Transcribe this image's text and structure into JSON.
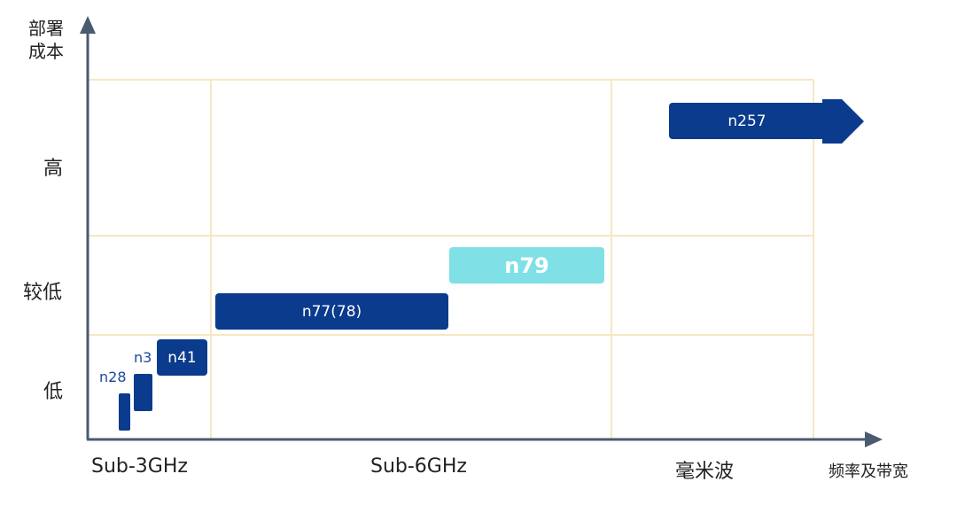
{
  "y_axis": {
    "title_line1": "部署",
    "title_line2": "成本",
    "levels": [
      "高",
      "较低",
      "低"
    ]
  },
  "x_axis": {
    "categories": [
      "Sub-3GHz",
      "Sub-6GHz",
      "毫米波"
    ],
    "title": "频率及带宽"
  },
  "bands": {
    "n28": "n28",
    "n3": "n3",
    "n41": "n41",
    "n77": "n77(78)",
    "n79": "n79",
    "n257": "n257"
  },
  "colors": {
    "band_dark": "#0b3b8c",
    "band_light": "#7fe0e6",
    "axis": "#4a5a70",
    "grid": "#f7e7c4"
  }
}
